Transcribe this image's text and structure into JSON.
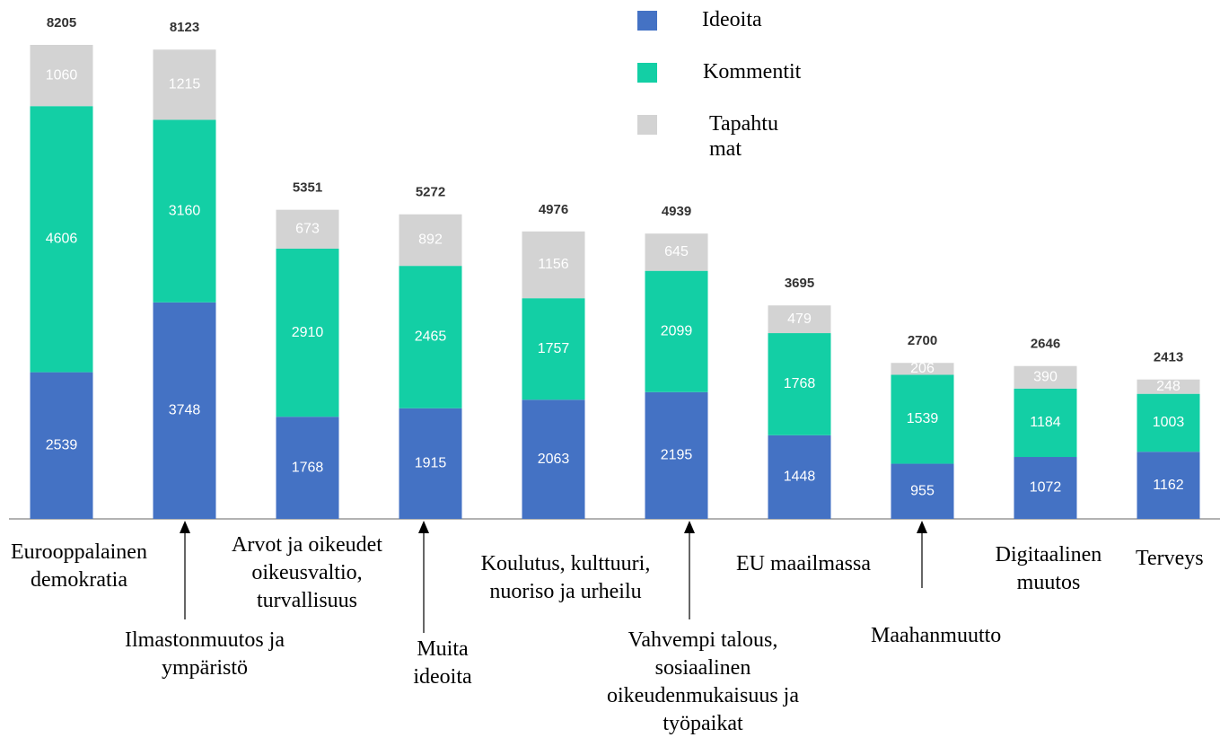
{
  "chart_data": {
    "type": "stacked_bar",
    "categories": [
      "Eurooppalainen demokratia",
      "Ilmastonmuutos ja ympäristö",
      "Arvot ja oikeudet oikeusvaltio, turvallisuus",
      "Muita ideoita",
      "Koulutus, kulttuuri, nuoriso ja urheilu",
      "Vahvempi talous, sosiaalinen oikeudenmukaisuus ja työpaikat",
      "EU maailmassa",
      "Maahanmuutto",
      "Digitaalinen muutos",
      "Terveys"
    ],
    "series": [
      {
        "name": "Ideoita",
        "color": "#4472c4",
        "values": [
          2539,
          3748,
          1768,
          1915,
          2063,
          2195,
          1448,
          955,
          1072,
          1162
        ]
      },
      {
        "name": "Kommentit",
        "color": "#13cfa5",
        "values": [
          4606,
          3160,
          2910,
          2465,
          1757,
          2099,
          1768,
          1539,
          1184,
          1003
        ]
      },
      {
        "name": "Tapahtumat",
        "color": "#d3d3d3",
        "values": [
          1060,
          1215,
          673,
          892,
          1156,
          645,
          479,
          206,
          390,
          248
        ]
      }
    ],
    "totals": [
      8205,
      8123,
      5351,
      5272,
      4976,
      4939,
      3695,
      2700,
      2646,
      2413
    ],
    "ylim": [
      0,
      8205
    ]
  }
}
